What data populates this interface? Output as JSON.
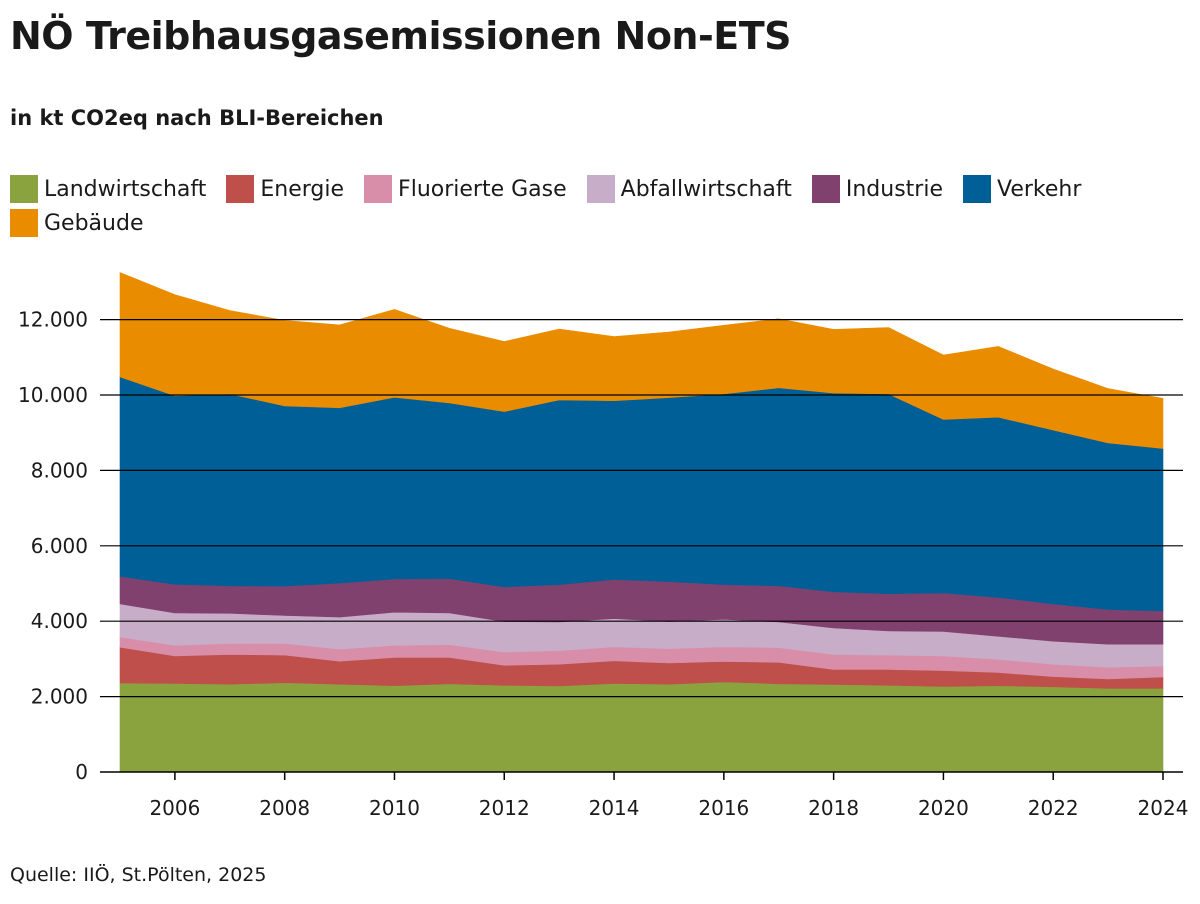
{
  "header": {
    "title": "NÖ Treibhausgasemissionen Non-ETS",
    "subtitle": "in kt CO2eq nach BLI-Bereichen"
  },
  "footer": {
    "source": "Quelle: IIÖ, St.Pölten, 2025"
  },
  "chart_data": {
    "type": "area",
    "stacked": true,
    "title": "NÖ Treibhausgasemissionen Non-ETS",
    "subtitle": "in kt CO2eq nach BLI-Bereichen",
    "xlabel": "",
    "ylabel": "",
    "x": [
      2005,
      2006,
      2007,
      2008,
      2009,
      2010,
      2011,
      2012,
      2013,
      2014,
      2015,
      2016,
      2017,
      2018,
      2019,
      2020,
      2021,
      2022,
      2023,
      2024
    ],
    "xticks": [
      2006,
      2008,
      2010,
      2012,
      2014,
      2016,
      2018,
      2020,
      2022,
      2024
    ],
    "xtick_labels": [
      "2006",
      "2008",
      "2010",
      "2012",
      "2014",
      "2016",
      "2018",
      "2020",
      "2022",
      "2024"
    ],
    "yticks": [
      0,
      2000,
      4000,
      6000,
      8000,
      10000,
      12000
    ],
    "ytick_labels": [
      "0",
      "2.000",
      "4.000",
      "6.000",
      "8.000",
      "10.000",
      "12.000"
    ],
    "xlim": [
      2005,
      2024
    ],
    "ylim": [
      0,
      13500
    ],
    "grid": "horizontal",
    "legend_position": "top",
    "series": [
      {
        "name": "Landwirtschaft",
        "color": "#8aa33f",
        "values": [
          2360,
          2350,
          2330,
          2370,
          2330,
          2290,
          2340,
          2300,
          2280,
          2350,
          2330,
          2390,
          2340,
          2320,
          2300,
          2270,
          2290,
          2260,
          2220,
          2220
        ]
      },
      {
        "name": "Energie",
        "color": "#bf4f4a",
        "values": [
          950,
          730,
          790,
          730,
          610,
          750,
          700,
          530,
          580,
          600,
          560,
          540,
          570,
          400,
          420,
          420,
          350,
          270,
          250,
          300
        ]
      },
      {
        "name": "Fluorierte Gase",
        "color": "#d88ea9",
        "values": [
          270,
          280,
          290,
          310,
          320,
          320,
          340,
          350,
          360,
          370,
          380,
          390,
          390,
          400,
          380,
          390,
          350,
          330,
          310,
          290
        ]
      },
      {
        "name": "Abfallwirtschaft",
        "color": "#c8adc8",
        "values": [
          880,
          860,
          800,
          740,
          850,
          880,
          840,
          810,
          760,
          750,
          720,
          730,
          680,
          700,
          640,
          650,
          610,
          610,
          610,
          580
        ]
      },
      {
        "name": "Industrie",
        "color": "#80416e",
        "values": [
          730,
          760,
          730,
          780,
          900,
          880,
          910,
          920,
          990,
          1040,
          1060,
          920,
          960,
          960,
          990,
          1020,
          1030,
          990,
          920,
          880
        ]
      },
      {
        "name": "Verkehr",
        "color": "#005f96",
        "values": [
          5290,
          5000,
          5090,
          4780,
          4650,
          4820,
          4660,
          4650,
          4900,
          4740,
          4880,
          5060,
          5250,
          5270,
          5300,
          4600,
          4780,
          4610,
          4420,
          4310
        ]
      },
      {
        "name": "Gebäude",
        "color": "#ea8c00",
        "values": [
          2770,
          2680,
          2210,
          2270,
          2200,
          2330,
          1980,
          1860,
          1880,
          1700,
          1740,
          1820,
          1830,
          1690,
          1760,
          1710,
          1880,
          1620,
          1440,
          1330
        ]
      }
    ]
  }
}
